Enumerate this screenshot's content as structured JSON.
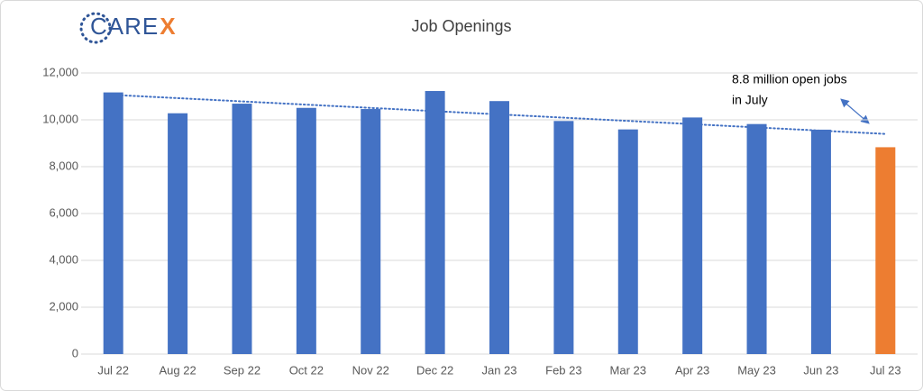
{
  "logo": [
    "CARE",
    "X"
  ],
  "chart_data": {
    "type": "bar",
    "title": "Job Openings",
    "categories": [
      "Jul 22",
      "Aug 22",
      "Sep 22",
      "Oct 22",
      "Nov 22",
      "Dec 22",
      "Jan 23",
      "Feb 23",
      "Mar 23",
      "Apr 23",
      "May 23",
      "Jun 23",
      "Jul 23"
    ],
    "values": [
      11170,
      10280,
      10690,
      10510,
      10460,
      11230,
      10800,
      9950,
      9590,
      10100,
      9820,
      9580,
      8830
    ],
    "colors": [
      "#4472c4",
      "#4472c4",
      "#4472c4",
      "#4472c4",
      "#4472c4",
      "#4472c4",
      "#4472c4",
      "#4472c4",
      "#4472c4",
      "#4472c4",
      "#4472c4",
      "#4472c4",
      "#ed7d31"
    ],
    "ylim": [
      0,
      12000
    ],
    "yticks": [
      0,
      {
        "value": 2000,
        "label": "2,000"
      },
      {
        "value": 4000,
        "label": "4,000"
      },
      {
        "value": 6000,
        "label": "6,000"
      },
      {
        "value": 8000,
        "label": "8,000"
      },
      {
        "value": 10000,
        "label": "10,000"
      },
      {
        "value": 12000,
        "label": "12,000"
      }
    ],
    "grid": true,
    "trendline": true,
    "trendline_color": "#4472c4",
    "annotation": [
      "8.8 million open jobs",
      "in July"
    ]
  }
}
